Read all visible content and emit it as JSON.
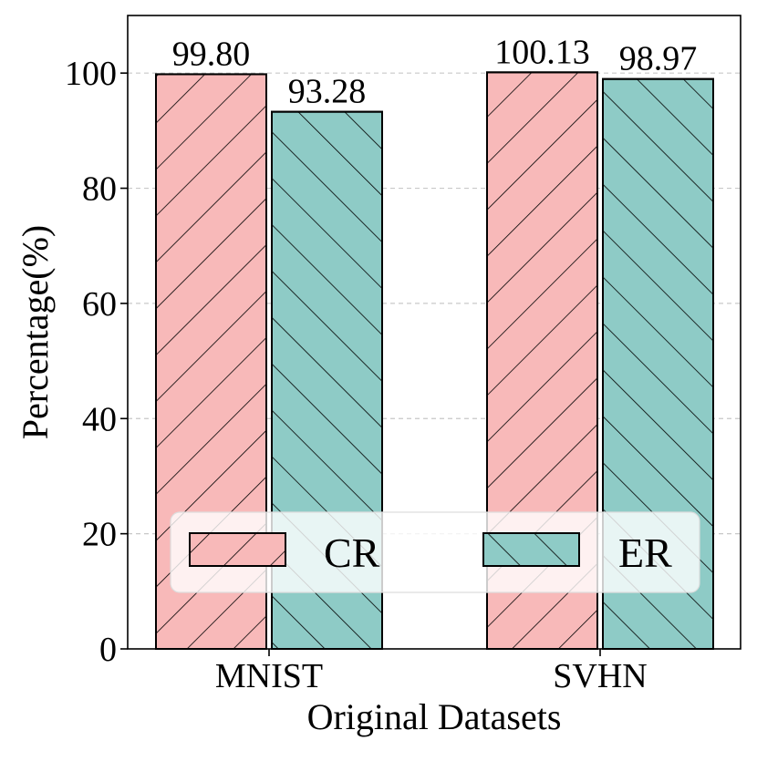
{
  "chart_data": {
    "type": "bar",
    "title": "",
    "xlabel": "Original Datasets",
    "ylabel": "Percentage(%)",
    "categories": [
      "MNIST",
      "SVHN"
    ],
    "ylim": [
      0,
      110
    ],
    "yticks": [
      0,
      20,
      40,
      60,
      80,
      100
    ],
    "grid": "y-dashed",
    "legend_position": "lower-center",
    "series": [
      {
        "name": "CR",
        "values": [
          99.8,
          100.13
        ],
        "labels": [
          "99.80",
          "100.13"
        ],
        "color": "#f8b9b9",
        "hatch": "/"
      },
      {
        "name": "ER",
        "values": [
          93.28,
          98.97
        ],
        "labels": [
          "93.28",
          "98.97"
        ],
        "color": "#8ecbc6",
        "hatch": "\\"
      }
    ]
  }
}
